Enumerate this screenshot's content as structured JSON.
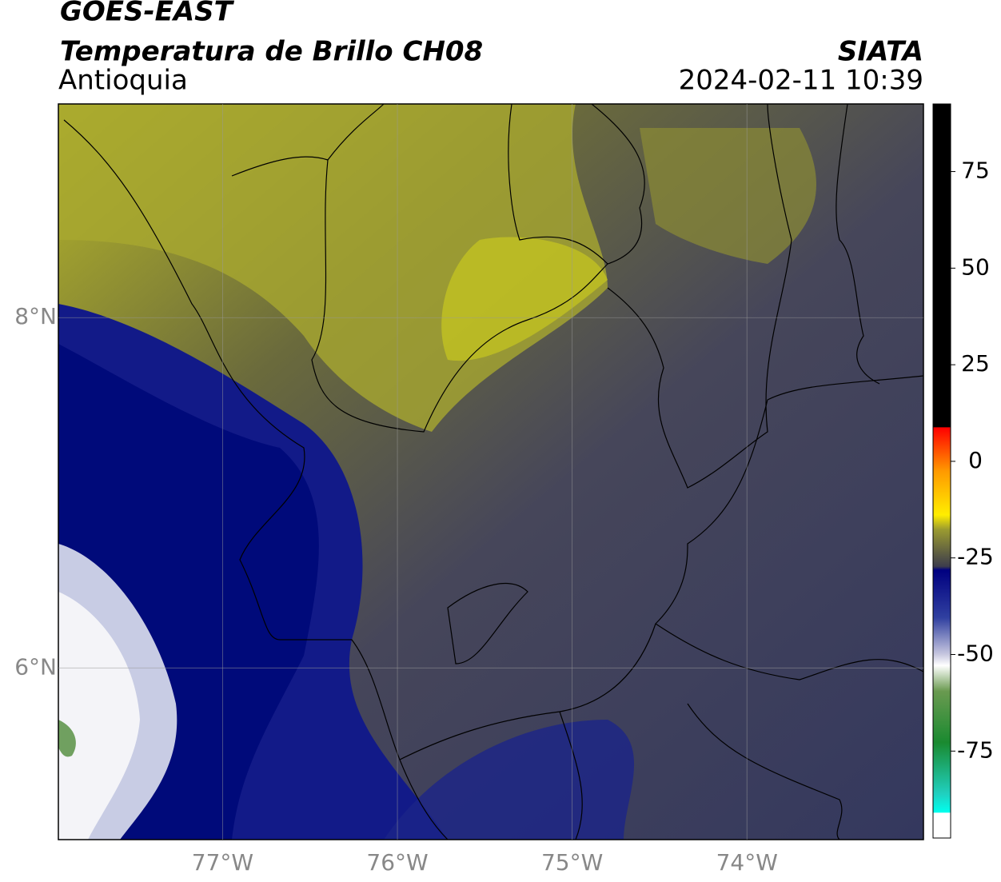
{
  "header": {
    "satellite": "GOES-EAST",
    "product": "Temperatura de Brillo CH08",
    "region": "Antioquia",
    "agency": "SIATA",
    "datetime": "2024-02-11 10:39"
  },
  "map": {
    "lonlim": [
      -77.94,
      -72.99
    ],
    "latlim": [
      5.02,
      9.22
    ],
    "lonticks": [
      {
        "value": -77,
        "label": "77°W"
      },
      {
        "value": -76,
        "label": "76°W"
      },
      {
        "value": -75,
        "label": "75°W"
      },
      {
        "value": -74,
        "label": "74°W"
      }
    ],
    "latticks": [
      {
        "value": 8,
        "label": "8°N"
      },
      {
        "value": 6,
        "label": "6°N"
      }
    ]
  },
  "colorbar": {
    "lim": [
      -97.5,
      92.5
    ],
    "ticks": [
      75,
      50,
      25,
      0,
      -25,
      -50,
      -75
    ]
  }
}
